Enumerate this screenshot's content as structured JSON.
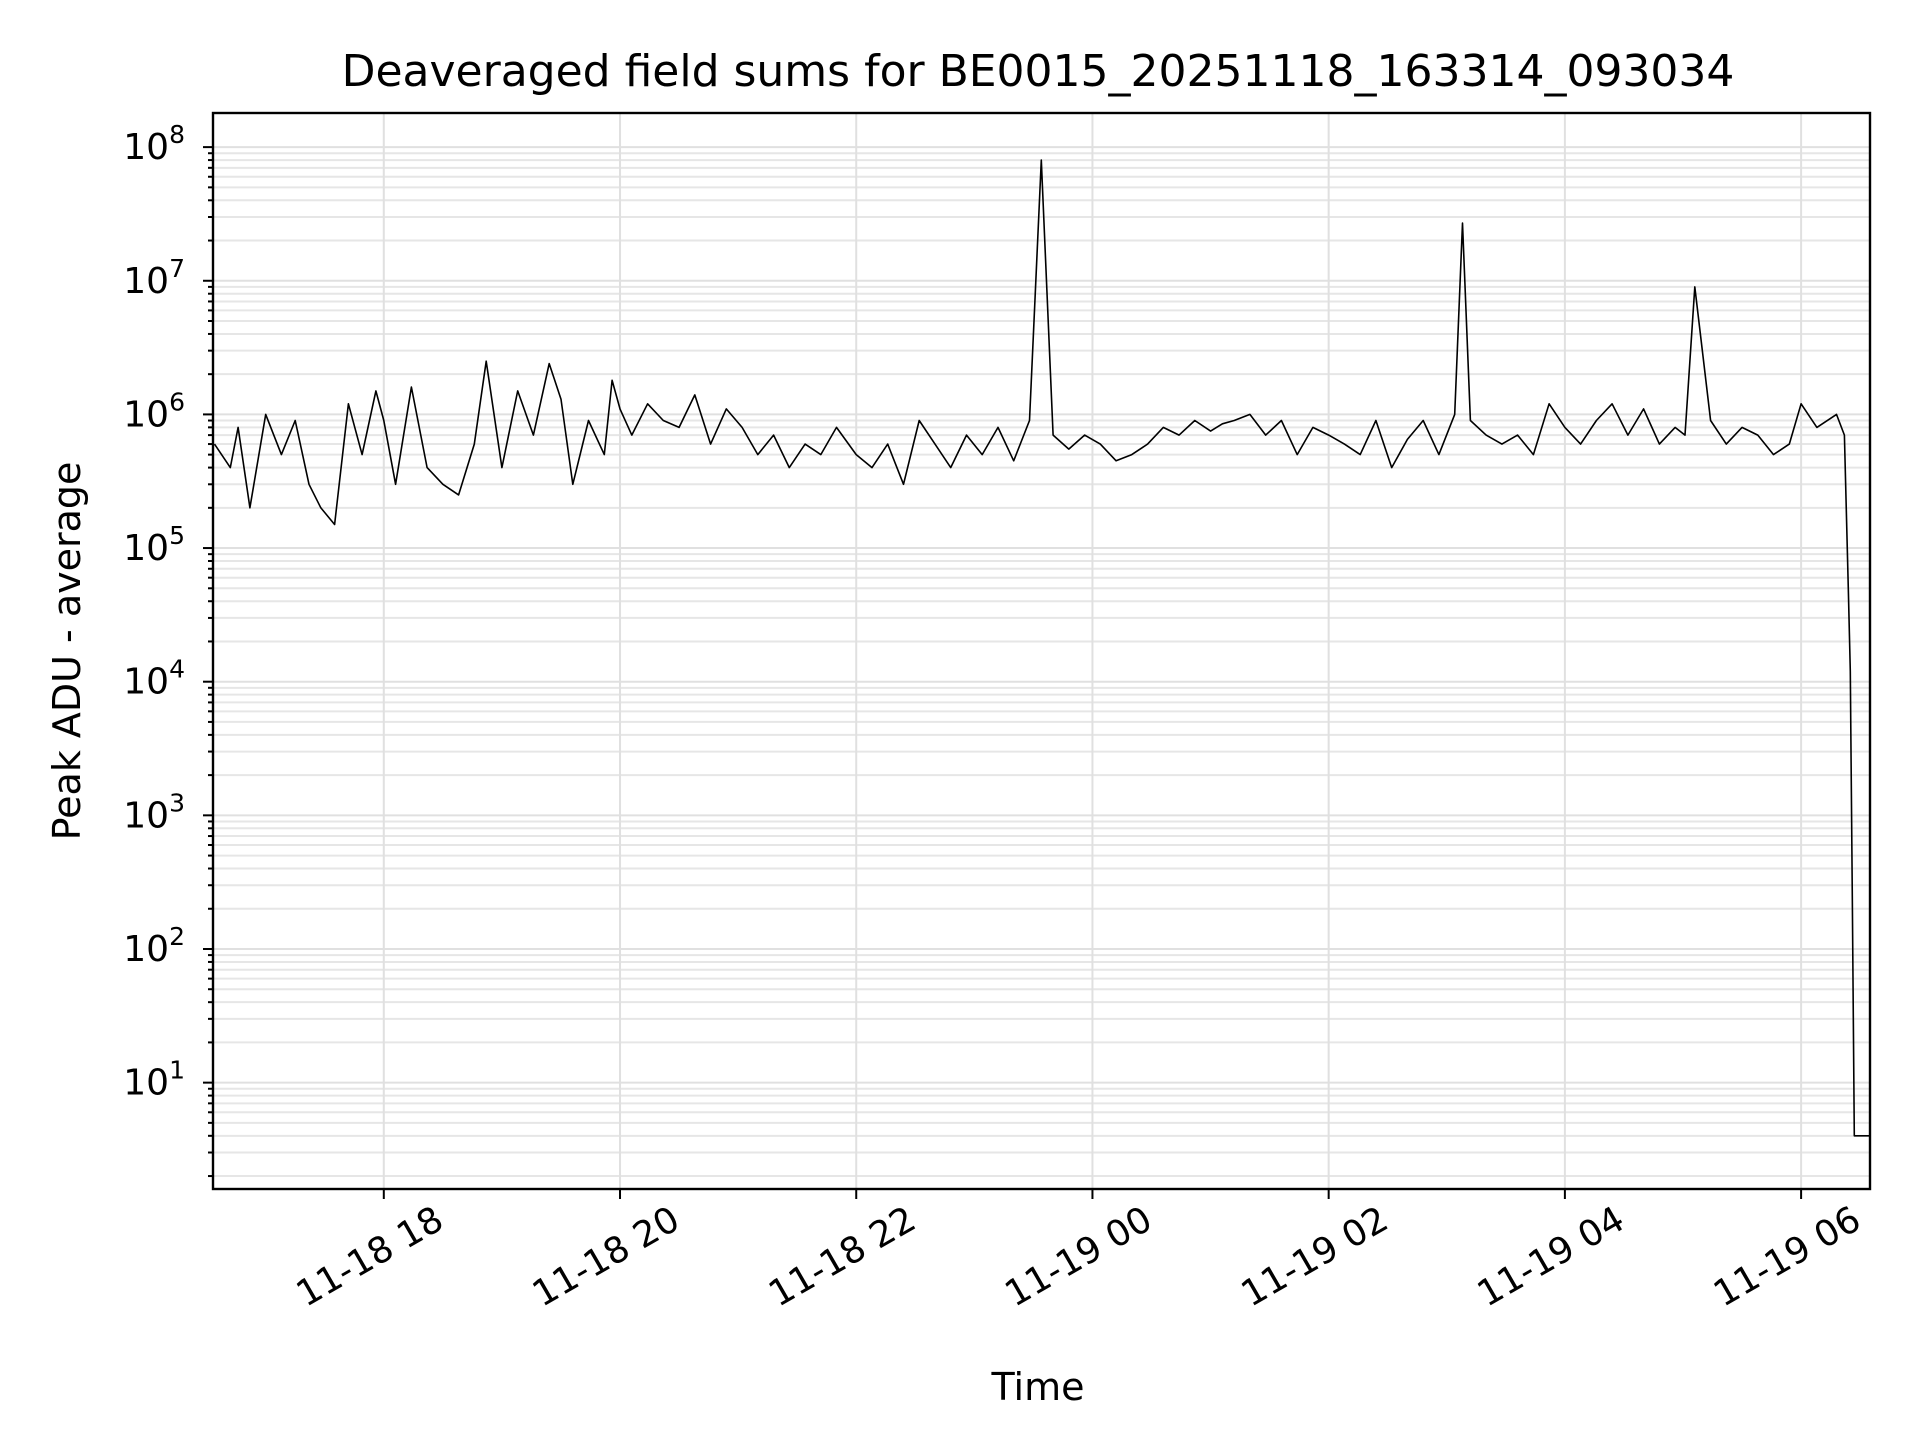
{
  "chart_data": {
    "type": "line",
    "title": "Deaveraged field sums for BE0015_20251118_163314_093034",
    "xlabel": "Time",
    "ylabel": "Peak ADU - average",
    "y_scale": "log",
    "xlim": [
      "2025-11-18T16:33:14",
      "2025-11-19T06:35:00"
    ],
    "ylim": [
      1.6,
      180000000
    ],
    "x_ticks": [
      "2025-11-18T18:00",
      "2025-11-18T20:00",
      "2025-11-18T22:00",
      "2025-11-19T00:00",
      "2025-11-19T02:00",
      "2025-11-19T04:00",
      "2025-11-19T06:00"
    ],
    "x_tick_labels": [
      "11-18 18",
      "11-18 20",
      "11-18 22",
      "11-19 00",
      "11-19 02",
      "11-19 04",
      "11-19 06"
    ],
    "y_ticks": [
      10,
      100,
      1000,
      10000,
      100000,
      1000000,
      10000000,
      100000000
    ],
    "y_tick_base": "10",
    "y_tick_exponents": [
      "1",
      "2",
      "3",
      "4",
      "5",
      "6",
      "7",
      "8"
    ],
    "grid": true,
    "line_color": "#000000",
    "series": [
      {
        "x": [
          "2025-11-18T16:34",
          "2025-11-18T16:42",
          "2025-11-18T16:46",
          "2025-11-18T16:52",
          "2025-11-18T17:00",
          "2025-11-18T17:08",
          "2025-11-18T17:15",
          "2025-11-18T17:22",
          "2025-11-18T17:28",
          "2025-11-18T17:35",
          "2025-11-18T17:42",
          "2025-11-18T17:49",
          "2025-11-18T17:56",
          "2025-11-18T18:00",
          "2025-11-18T18:06",
          "2025-11-18T18:14",
          "2025-11-18T18:22",
          "2025-11-18T18:30",
          "2025-11-18T18:38",
          "2025-11-18T18:46",
          "2025-11-18T18:52",
          "2025-11-18T19:00",
          "2025-11-18T19:08",
          "2025-11-18T19:16",
          "2025-11-18T19:24",
          "2025-11-18T19:30",
          "2025-11-18T19:36",
          "2025-11-18T19:44",
          "2025-11-18T19:52",
          "2025-11-18T19:56",
          "2025-11-18T20:00",
          "2025-11-18T20:06",
          "2025-11-18T20:14",
          "2025-11-18T20:22",
          "2025-11-18T20:30",
          "2025-11-18T20:38",
          "2025-11-18T20:46",
          "2025-11-18T20:54",
          "2025-11-18T21:02",
          "2025-11-18T21:10",
          "2025-11-18T21:18",
          "2025-11-18T21:26",
          "2025-11-18T21:34",
          "2025-11-18T21:42",
          "2025-11-18T21:50",
          "2025-11-18T22:00",
          "2025-11-18T22:08",
          "2025-11-18T22:16",
          "2025-11-18T22:24",
          "2025-11-18T22:32",
          "2025-11-18T22:40",
          "2025-11-18T22:48",
          "2025-11-18T22:56",
          "2025-11-18T23:04",
          "2025-11-18T23:12",
          "2025-11-18T23:20",
          "2025-11-18T23:28",
          "2025-11-18T23:34",
          "2025-11-18T23:40",
          "2025-11-18T23:48",
          "2025-11-18T23:56",
          "2025-11-19T00:04",
          "2025-11-19T00:12",
          "2025-11-19T00:20",
          "2025-11-19T00:28",
          "2025-11-19T00:36",
          "2025-11-19T00:44",
          "2025-11-19T00:52",
          "2025-11-19T01:00",
          "2025-11-19T01:06",
          "2025-11-19T01:12",
          "2025-11-19T01:20",
          "2025-11-19T01:28",
          "2025-11-19T01:36",
          "2025-11-19T01:44",
          "2025-11-19T01:52",
          "2025-11-19T02:00",
          "2025-11-19T02:08",
          "2025-11-19T02:16",
          "2025-11-19T02:24",
          "2025-11-19T02:32",
          "2025-11-19T02:40",
          "2025-11-19T02:48",
          "2025-11-19T02:56",
          "2025-11-19T03:04",
          "2025-11-19T03:08",
          "2025-11-19T03:12",
          "2025-11-19T03:20",
          "2025-11-19T03:28",
          "2025-11-19T03:36",
          "2025-11-19T03:44",
          "2025-11-19T03:52",
          "2025-11-19T04:00",
          "2025-11-19T04:08",
          "2025-11-19T04:16",
          "2025-11-19T04:24",
          "2025-11-19T04:32",
          "2025-11-19T04:40",
          "2025-11-19T04:48",
          "2025-11-19T04:56",
          "2025-11-19T05:01",
          "2025-11-19T05:06",
          "2025-11-19T05:14",
          "2025-11-19T05:22",
          "2025-11-19T05:30",
          "2025-11-19T05:38",
          "2025-11-19T05:46",
          "2025-11-19T05:54",
          "2025-11-19T06:00",
          "2025-11-19T06:08",
          "2025-11-19T06:18",
          "2025-11-19T06:22",
          "2025-11-19T06:24",
          "2025-11-19T06:25",
          "2025-11-19T06:26",
          "2025-11-19T06:27",
          "2025-11-19T06:35"
        ],
        "values": [
          600000,
          400000,
          800000,
          200000,
          1000000,
          500000,
          900000,
          300000,
          200000,
          150000,
          1200000,
          500000,
          1500000,
          900000,
          300000,
          1600000,
          400000,
          300000,
          250000,
          600000,
          2500000,
          400000,
          1500000,
          700000,
          2400000,
          1300000,
          300000,
          900000,
          500000,
          1800000,
          1100000,
          700000,
          1200000,
          900000,
          800000,
          1400000,
          600000,
          1100000,
          800000,
          500000,
          700000,
          400000,
          600000,
          500000,
          800000,
          500000,
          400000,
          600000,
          300000,
          900000,
          600000,
          400000,
          700000,
          500000,
          800000,
          450000,
          900000,
          80000000,
          700000,
          550000,
          700000,
          600000,
          450000,
          500000,
          600000,
          800000,
          700000,
          900000,
          750000,
          850000,
          900000,
          1000000,
          700000,
          900000,
          500000,
          800000,
          700000,
          600000,
          500000,
          900000,
          400000,
          650000,
          900000,
          500000,
          1000000,
          27000000,
          900000,
          700000,
          600000,
          700000,
          500000,
          1200000,
          800000,
          600000,
          900000,
          1200000,
          700000,
          1100000,
          600000,
          800000,
          700000,
          9000000,
          900000,
          600000,
          800000,
          700000,
          500000,
          600000,
          1200000,
          800000,
          1000000,
          700000,
          50000,
          12000,
          250,
          4,
          4
        ]
      }
    ]
  }
}
